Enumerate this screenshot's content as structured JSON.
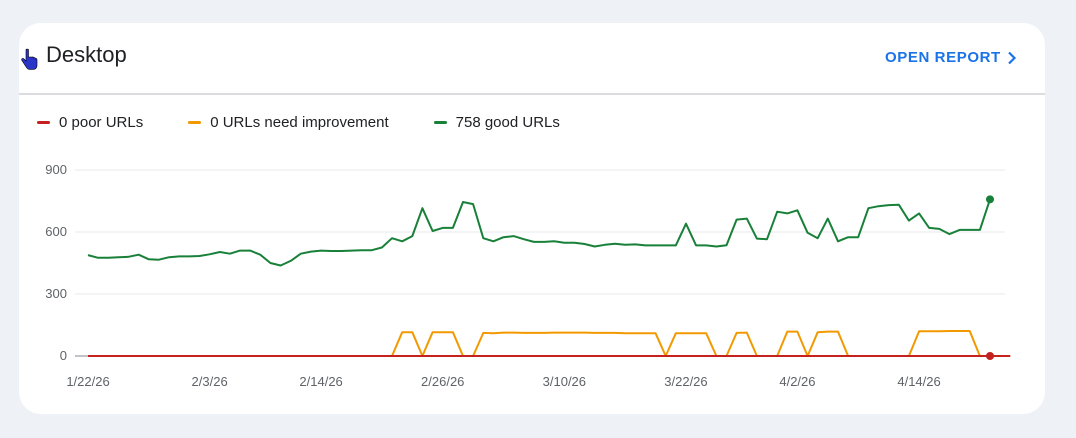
{
  "header": {
    "title": "Desktop",
    "open_report_label": "OPEN REPORT"
  },
  "icons": {
    "pointer": "hand-pointer-icon",
    "chevron": "chevron-right-icon"
  },
  "colors": {
    "poor": "#c5221f",
    "needs_improvement": "#f29900",
    "good": "#188038",
    "link": "#1a73e8"
  },
  "chart_data": {
    "type": "line",
    "legend": [
      "0 poor URLs",
      "0 URLs need improvement",
      "758 good URLs"
    ],
    "x_tick_labels": [
      "1/22/26",
      "2/3/26",
      "2/14/26",
      "2/26/26",
      "3/10/26",
      "3/22/26",
      "4/2/26",
      "4/14/26"
    ],
    "y_tick_labels": [
      "900",
      "600",
      "300",
      "0"
    ],
    "ylim": [
      0,
      900
    ],
    "grid": true,
    "series": [
      {
        "name": "0 poor URLs",
        "color": "#c5221f",
        "values": [
          0,
          0,
          0,
          0,
          0,
          0,
          0,
          0,
          0,
          0,
          0,
          0,
          0,
          0,
          0,
          0,
          0,
          0,
          0,
          0,
          0,
          0,
          0,
          0,
          0,
          0,
          0,
          0,
          0,
          0,
          0,
          0,
          0,
          0,
          0,
          0,
          0,
          0,
          0,
          0,
          0,
          0,
          0,
          0,
          0,
          0,
          0,
          0,
          0,
          0,
          0,
          0,
          0,
          0,
          0,
          0,
          0,
          0,
          0,
          0,
          0,
          0,
          0,
          0,
          0,
          0,
          0,
          0,
          0,
          0,
          0,
          0,
          0,
          0,
          0,
          0,
          0,
          0,
          0,
          0,
          0,
          0,
          0,
          0,
          0,
          0,
          0,
          0,
          0,
          0,
          0,
          0
        ]
      },
      {
        "name": "0 URLs need improvement",
        "color": "#f29900",
        "values": [
          0,
          0,
          0,
          0,
          0,
          0,
          0,
          0,
          0,
          0,
          0,
          0,
          0,
          0,
          0,
          0,
          0,
          0,
          0,
          0,
          0,
          0,
          0,
          0,
          0,
          0,
          0,
          0,
          0,
          0,
          0,
          115,
          115,
          0,
          115,
          115,
          115,
          0,
          0,
          112,
          110,
          113,
          113,
          112,
          112,
          112,
          113,
          113,
          113,
          113,
          112,
          112,
          112,
          110,
          110,
          110,
          110,
          0,
          110,
          110,
          110,
          110,
          0,
          0,
          112,
          113,
          0,
          0,
          0,
          118,
          118,
          0,
          115,
          118,
          118,
          0,
          0,
          0,
          0,
          0,
          0,
          0,
          120,
          120,
          120,
          121,
          121,
          121,
          0
        ]
      },
      {
        "name": "758 good URLs",
        "color": "#188038",
        "values": [
          488,
          475,
          475,
          478,
          480,
          490,
          468,
          466,
          478,
          482,
          482,
          484,
          492,
          503,
          495,
          510,
          510,
          490,
          450,
          438,
          460,
          495,
          505,
          510,
          508,
          508,
          510,
          512,
          512,
          525,
          570,
          555,
          580,
          715,
          605,
          620,
          620,
          745,
          735,
          570,
          555,
          575,
          580,
          565,
          552,
          552,
          555,
          548,
          548,
          542,
          530,
          538,
          543,
          538,
          540,
          535,
          535,
          535,
          535,
          640,
          535,
          535,
          530,
          536,
          660,
          665,
          568,
          565,
          698,
          690,
          705,
          596,
          570,
          665,
          555,
          575,
          575,
          715,
          725,
          730,
          732,
          655,
          690,
          620,
          615,
          590,
          610,
          610,
          610,
          758
        ]
      }
    ]
  }
}
